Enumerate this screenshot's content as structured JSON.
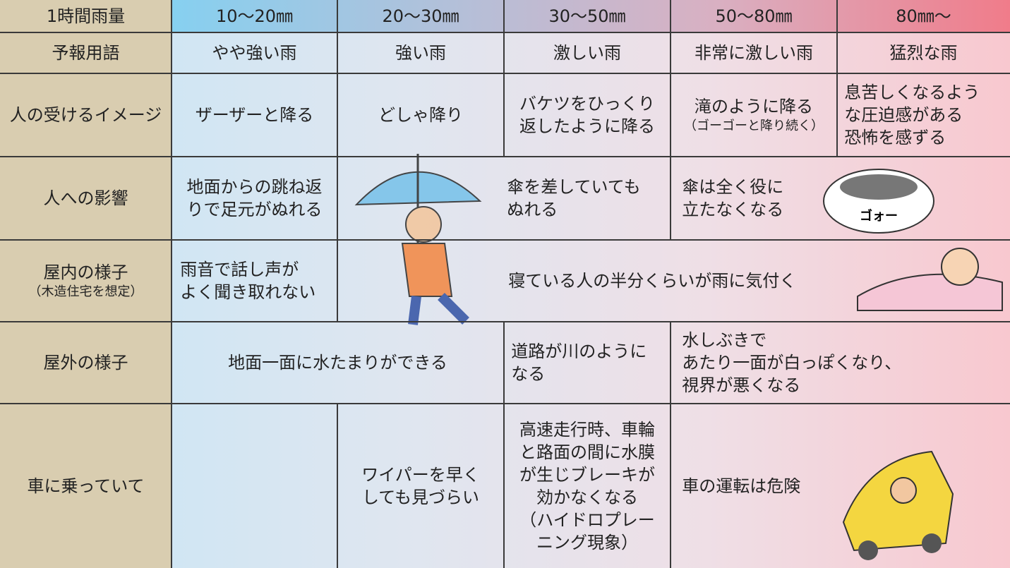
{
  "table": {
    "header": {
      "label": "1時間雨量",
      "columns": [
        "10〜20㎜",
        "20〜30㎜",
        "30〜50㎜",
        "50〜80㎜",
        "80㎜〜"
      ]
    },
    "rows": [
      {
        "label": "予報用語",
        "cells": [
          "やや強い雨",
          "強い雨",
          "激しい雨",
          "非常に激しい雨",
          "猛烈な雨"
        ]
      },
      {
        "label": "人の受けるイメージ",
        "cells": [
          "ザーザーと降る",
          "どしゃ降り",
          "バケツをひっくり\n返したように降る",
          {
            "text": "滝のように降る",
            "note": "（ゴーゴーと降り続く）"
          },
          "息苦しくなるよう\nな圧迫感がある\n恐怖を感ずる"
        ]
      },
      {
        "label": "人への影響",
        "cells": [
          "地面からの跳ね返\nりで足元がぬれる",
          "傘を差していても\nぬれる",
          "傘は全く役に\n立たなくなる"
        ]
      },
      {
        "label": "屋内の様子",
        "label_note": "（木造住宅を想定）",
        "cells": [
          "雨音で話し声が\nよく聞き取れない",
          "寝ている人の半分くらいが雨に気付く"
        ]
      },
      {
        "label": "屋外の様子",
        "cells": [
          "地面一面に水たまりができる",
          "道路が川のように\nなる",
          "水しぶきで\nあたり一面が白っぽくなり、\n視界が悪くなる"
        ]
      },
      {
        "label": "車に乗っていて",
        "cells": [
          "ワイパーを早く\nしても見づらい",
          "高速走行時、車輪\nと路面の間に水膜\nが生じブレーキが\n効かなくなる\n（ハイドロプレー\nニング現象）",
          "車の運転は危険"
        ]
      }
    ],
    "illustration_text": "ゴォー"
  }
}
